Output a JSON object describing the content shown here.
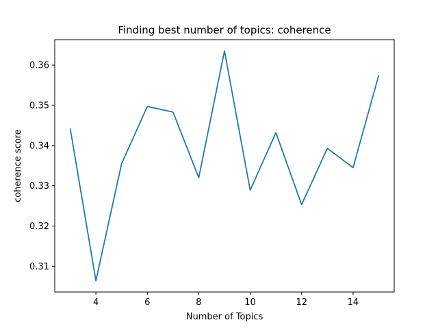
{
  "chart_data": {
    "type": "line",
    "title": "Finding best number of topics:  coherence",
    "xlabel": "Number of Topics",
    "ylabel": "coherence score",
    "x": [
      3,
      4,
      5,
      6,
      7,
      8,
      9,
      10,
      11,
      12,
      13,
      14,
      15
    ],
    "series": [
      {
        "name": "coherence",
        "values": [
          0.3443,
          0.3064,
          0.3355,
          0.3497,
          0.3483,
          0.332,
          0.3635,
          0.3289,
          0.3432,
          0.3253,
          0.3393,
          0.3345,
          0.3575
        ]
      }
    ],
    "xlim": [
      2.4,
      15.6
    ],
    "ylim": [
      0.3036,
      0.3663
    ],
    "xticks": [
      4,
      6,
      8,
      10,
      12,
      14
    ],
    "xtick_labels": [
      "4",
      "6",
      "8",
      "10",
      "12",
      "14"
    ],
    "yticks": [
      0.31,
      0.32,
      0.33,
      0.34,
      0.35,
      0.36
    ],
    "ytick_labels": [
      "0.31",
      "0.32",
      "0.33",
      "0.34",
      "0.35",
      "0.36"
    ],
    "grid": false,
    "line_color": "#1f77b4"
  }
}
